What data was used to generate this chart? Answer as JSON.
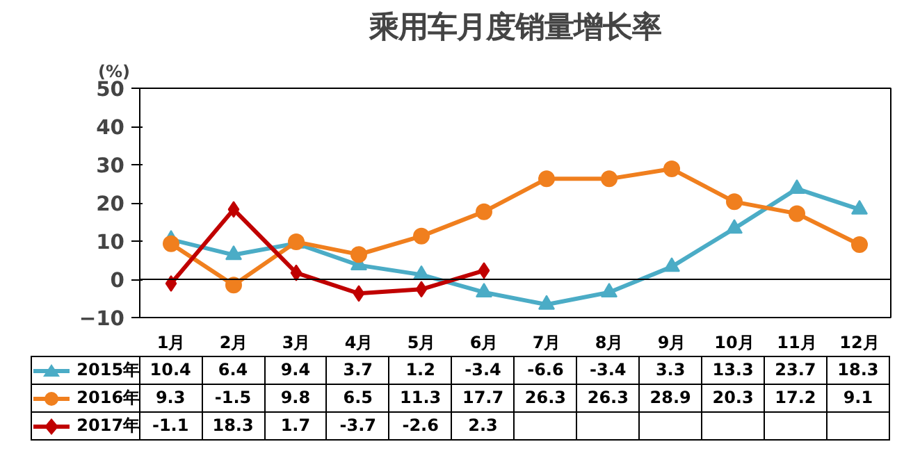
{
  "chart_data": {
    "type": "line",
    "title": "乘用车月度销量增长率",
    "ylabel": "(%)",
    "categories": [
      "1月",
      "2月",
      "3月",
      "4月",
      "5月",
      "6月",
      "7月",
      "8月",
      "9月",
      "10月",
      "11月",
      "12月"
    ],
    "series": [
      {
        "name": "2015年",
        "color": "#4bacc6",
        "marker": "triangle",
        "values": [
          10.4,
          6.4,
          9.4,
          3.7,
          1.2,
          -3.4,
          -6.6,
          -3.4,
          3.3,
          13.3,
          23.7,
          18.3
        ]
      },
      {
        "name": "2016年",
        "color": "#f07f1e",
        "marker": "circle",
        "values": [
          9.3,
          -1.5,
          9.8,
          6.5,
          11.3,
          17.7,
          26.3,
          26.3,
          28.9,
          20.3,
          17.2,
          9.1
        ]
      },
      {
        "name": "2017年",
        "color": "#c00000",
        "marker": "diamond",
        "values": [
          -1.1,
          18.3,
          1.7,
          -3.7,
          -2.6,
          2.3,
          null,
          null,
          null,
          null,
          null,
          null
        ]
      }
    ],
    "ylim": [
      -10,
      50
    ],
    "yticks": [
      -10,
      0,
      10,
      20,
      30,
      40,
      50
    ],
    "ref_lines": [
      {
        "axis": "y",
        "value": 0,
        "color": "#000000"
      }
    ],
    "grid": false,
    "legend": "bottom",
    "data_labels": true,
    "line_style": "solid"
  }
}
